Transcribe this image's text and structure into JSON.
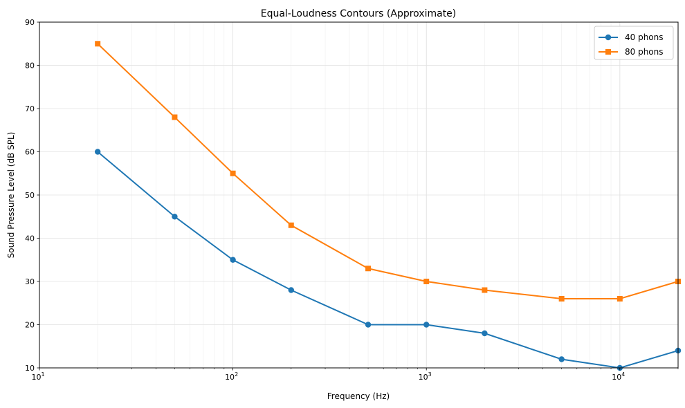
{
  "chart_data": {
    "type": "line",
    "title": "Equal-Loudness Contours (Approximate)",
    "xlabel": "Frequency (Hz)",
    "ylabel": "Sound Pressure Level (dB SPL)",
    "xscale": "log",
    "xlim": [
      10,
      20000
    ],
    "ylim": [
      10,
      90
    ],
    "grid": true,
    "legend_position": "top-right",
    "x": [
      20,
      50,
      100,
      200,
      500,
      1000,
      2000,
      5000,
      10000,
      20000
    ],
    "xticks": [
      {
        "value": 10,
        "base": "10",
        "exp": "1"
      },
      {
        "value": 100,
        "base": "10",
        "exp": "2"
      },
      {
        "value": 1000,
        "base": "10",
        "exp": "3"
      },
      {
        "value": 10000,
        "base": "10",
        "exp": "4"
      }
    ],
    "yticks": [
      "10",
      "20",
      "30",
      "40",
      "50",
      "60",
      "70",
      "80",
      "90"
    ],
    "series": [
      {
        "name": "40 phons",
        "color": "#1f77b4",
        "marker": "circle",
        "values": [
          60,
          45,
          35,
          28,
          20,
          20,
          18,
          12,
          10,
          14
        ]
      },
      {
        "name": "80 phons",
        "color": "#ff7f0e",
        "marker": "square",
        "values": [
          85,
          68,
          55,
          43,
          33,
          30,
          28,
          26,
          26,
          30
        ]
      }
    ]
  }
}
